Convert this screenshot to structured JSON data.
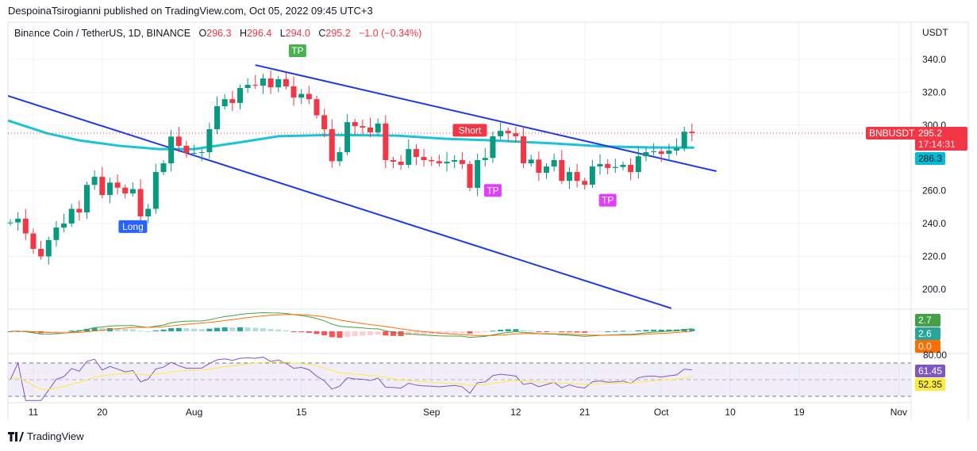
{
  "header": {
    "published": "DespoinaTsirogianni published on TradingView.com, Oct 05, 2022 09:45 UTC+3"
  },
  "legend": {
    "symbol": "Binance Coin / TetherUS, 1D, BINANCE",
    "o_label": "O",
    "o": "296.3",
    "h_label": "H",
    "h": "296.4",
    "l_label": "L",
    "l": "294.0",
    "c_label": "C",
    "c": "295.2",
    "change": "−1.0 (−0.34%)"
  },
  "price_axis": {
    "currency": "USDT",
    "ticks": [
      "340.0",
      "320.0",
      "300.0",
      "260.0",
      "240.0",
      "220.0",
      "200.0"
    ],
    "symbol_tag": "BNBUSDT",
    "last_price": "295.2",
    "countdown": "17:14:31",
    "ma_value": "286.3",
    "macd_values": [
      "2.7",
      "2.6",
      "0.0"
    ],
    "rsi_tick": "80.00",
    "rsi_value": "61.45",
    "rsi_ma_value": "52.35"
  },
  "time_axis": {
    "ticks": [
      {
        "label": "11",
        "day": 3
      },
      {
        "label": "20",
        "day": 12
      },
      {
        "label": "Aug",
        "day": 24
      },
      {
        "label": "15",
        "day": 38
      },
      {
        "label": "Sep",
        "day": 55
      },
      {
        "label": "12",
        "day": 66
      },
      {
        "label": "21",
        "day": 75
      },
      {
        "label": "Oct",
        "day": 85
      },
      {
        "label": "10",
        "day": 94
      },
      {
        "label": "19",
        "day": 103
      },
      {
        "label": "Nov",
        "day": 116
      }
    ]
  },
  "signals": [
    {
      "label": "Long",
      "day": 16,
      "price": 244,
      "color": "#2962ff",
      "dir": "below"
    },
    {
      "label": "TP",
      "day": 37.5,
      "price": 340.5,
      "color": "#4caf50",
      "dir": "above"
    },
    {
      "label": "Short",
      "day": 60,
      "price": 292,
      "color": "#f23645",
      "dir": "above"
    },
    {
      "label": "TP",
      "day": 63,
      "price": 266,
      "color": "#e040fb",
      "dir": "below"
    },
    {
      "label": "TP",
      "day": 78,
      "price": 260,
      "color": "#e040fb",
      "dir": "below"
    }
  ],
  "footer": {
    "brand": "TradingView"
  },
  "colors": {
    "up": "#089981",
    "down": "#f23645",
    "ma": "#00bcd4",
    "trend": "#1e3ae8",
    "macd": "#43a047",
    "signal": "#ff6d00",
    "rsi": "#7e57c2",
    "rsi_ma": "#ffeb3b"
  },
  "chart_data": {
    "type": "candlestick",
    "title": "Binance Coin / TetherUS, 1D, BINANCE",
    "start_date": "2022-07-08",
    "interval": "1D",
    "ylim": [
      185,
      345
    ],
    "close": [
      240.7,
      243,
      234,
      224.6,
      220,
      230,
      237.6,
      240,
      249,
      246.8,
      263.6,
      268.5,
      257.4,
      265,
      261.9,
      258.4,
      261,
      244.4,
      249,
      271.4,
      276.7,
      293,
      287.4,
      283,
      283,
      283.5,
      297.5,
      311.5,
      315.8,
      313.5,
      322.6,
      324.5,
      324,
      328.4,
      323,
      328,
      323.6,
      316.8,
      319,
      315.8,
      306,
      297.5,
      278,
      283.5,
      301.8,
      299.4,
      298.5,
      295.6,
      301,
      278.7,
      277.7,
      275.8,
      285.4,
      280.6,
      278.7,
      278,
      276.7,
      277.7,
      278.7,
      276.3,
      261.8,
      278.7,
      280,
      293.2,
      296.5,
      295,
      293.2,
      276.7,
      279,
      271,
      274.8,
      278.7,
      266,
      271.4,
      266,
      263.7,
      274.8,
      276.3,
      273.9,
      274.5,
      275.8,
      271.4,
      281,
      283.5,
      284,
      282.5,
      284.5,
      286,
      296,
      295.2
    ],
    "moving_average": [
      {
        "day": -0.3,
        "value": 302.8
      },
      {
        "day": 4.8,
        "value": 295
      },
      {
        "day": 9,
        "value": 290.7
      },
      {
        "day": 14.2,
        "value": 287.4
      },
      {
        "day": 19.4,
        "value": 285.4
      },
      {
        "day": 24,
        "value": 285.4
      },
      {
        "day": 29.7,
        "value": 289.3
      },
      {
        "day": 35,
        "value": 293.2
      },
      {
        "day": 42,
        "value": 294
      },
      {
        "day": 50.5,
        "value": 293.6
      },
      {
        "day": 56.6,
        "value": 291.7
      },
      {
        "day": 63,
        "value": 290.7
      },
      {
        "day": 71,
        "value": 288.8
      },
      {
        "day": 77.4,
        "value": 287
      },
      {
        "day": 83.5,
        "value": 286.4
      },
      {
        "day": 89.3,
        "value": 286.3
      }
    ],
    "trendlines": [
      {
        "from": {
          "day": -0.3,
          "price": 317.8
        },
        "to": {
          "day": 86.3,
          "price": 188.4
        }
      },
      {
        "from": {
          "day": 32,
          "price": 336.6
        },
        "to": {
          "day": 92.2,
          "price": 271.9
        }
      }
    ],
    "rsi_levels": [
      70,
      30
    ]
  }
}
